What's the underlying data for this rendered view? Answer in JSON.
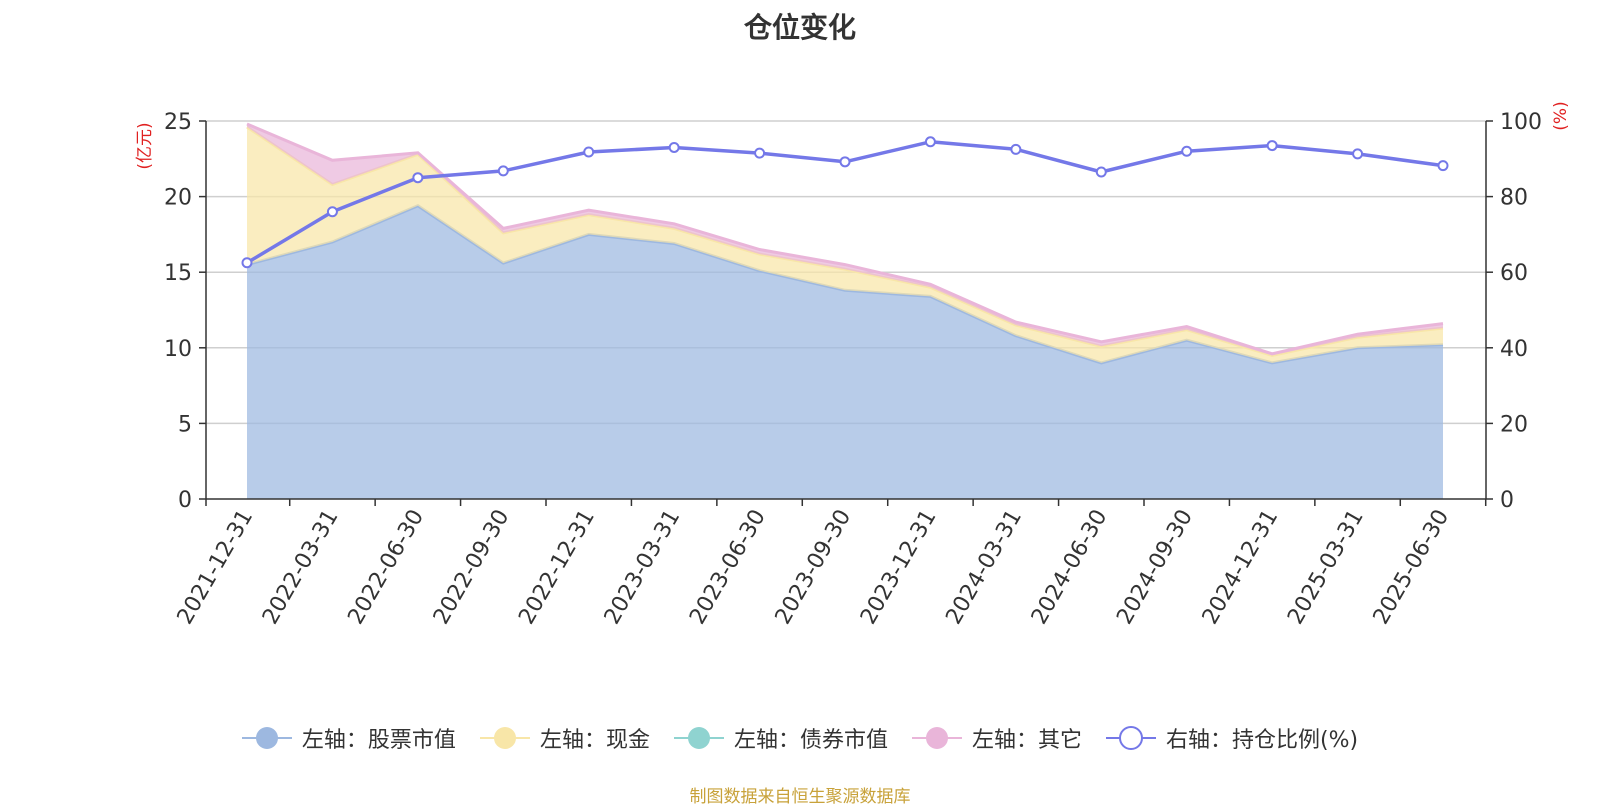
{
  "chart_data": {
    "type": "area",
    "title": "仓位变化",
    "categories": [
      "2021-12-31",
      "2022-03-31",
      "2022-06-30",
      "2022-09-30",
      "2022-12-31",
      "2023-03-31",
      "2023-06-30",
      "2023-09-30",
      "2023-12-31",
      "2024-03-31",
      "2024-06-30",
      "2024-09-30",
      "2024-12-31",
      "2025-03-31",
      "2025-06-30"
    ],
    "y_left": {
      "label": "(亿元)",
      "lim": [
        0,
        25
      ],
      "ticks": [
        0,
        5,
        10,
        15,
        20,
        25
      ]
    },
    "y_right": {
      "label": "(%)",
      "lim": [
        0,
        100
      ],
      "ticks": [
        0,
        20,
        40,
        60,
        80,
        100
      ]
    },
    "grid": true,
    "legend_position": "bottom",
    "series": [
      {
        "name": "左轴：股票市值",
        "axis": "left",
        "kind": "stacked-area",
        "color": "#9db8e0",
        "values": [
          15.5,
          17.0,
          19.4,
          15.6,
          17.5,
          16.9,
          15.1,
          13.8,
          13.4,
          10.8,
          9.0,
          10.5,
          9.0,
          10.0,
          10.2
        ]
      },
      {
        "name": "左轴：现金",
        "axis": "left",
        "kind": "stacked-area",
        "color": "#f8e6a8",
        "values": [
          9.1,
          3.8,
          3.4,
          2.0,
          1.3,
          1.0,
          1.1,
          1.4,
          0.6,
          0.7,
          1.1,
          0.7,
          0.5,
          0.7,
          1.1
        ]
      },
      {
        "name": "左轴：债券市值",
        "axis": "left",
        "kind": "stacked-area",
        "color": "#8fd3d0",
        "values": [
          0,
          0,
          0,
          0,
          0,
          0,
          0,
          0,
          0,
          0,
          0,
          0,
          0,
          0,
          0
        ]
      },
      {
        "name": "左轴：其它",
        "axis": "left",
        "kind": "stacked-area",
        "color": "#e9b5d9",
        "values": [
          0.2,
          1.6,
          0.1,
          0.3,
          0.3,
          0.3,
          0.3,
          0.3,
          0.2,
          0.2,
          0.3,
          0.2,
          0.1,
          0.2,
          0.3
        ]
      },
      {
        "name": "右轴：持仓比例(%)",
        "axis": "right",
        "kind": "line",
        "color": "#7478e8",
        "values": [
          62.5,
          76.0,
          85.0,
          86.8,
          91.8,
          93.0,
          91.5,
          89.2,
          94.5,
          92.5,
          86.5,
          92.0,
          93.5,
          91.3,
          88.2
        ]
      }
    ],
    "source": "制图数据来自恒生聚源数据库"
  }
}
